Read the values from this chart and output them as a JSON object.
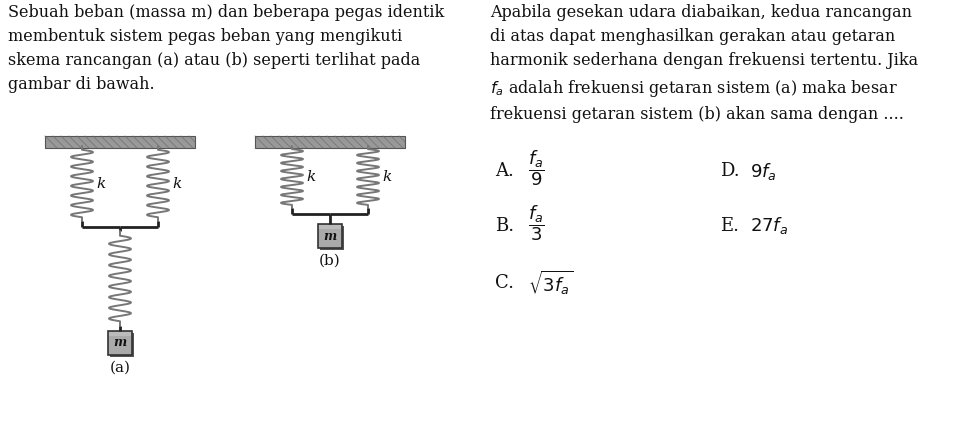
{
  "bg_color": "#ffffff",
  "left_text": "Sebuah beban (massa m) dan beberapa pegas identik\nmembentuk sistem pegas beban yang mengikuti\nskema rancangan (a) atau (b) seperti terlihat pada\ngambar di bawah.",
  "right_text_lines": [
    "Apabila gesekan udara diabaikan, kedua rancangan",
    "di atas dapat menghasilkan gerakan atau getaran",
    "harmonik sederhana dengan frekuensi tertentu. Jika",
    "$f_a$ adalah frekuensi getaran sistem (a) maka besar",
    "frekuensi getaran sistem (b) akan sama dengan ...."
  ],
  "spring_color": "#777777",
  "wall_fill": "#888888",
  "mass_fill": "#aaaaaa",
  "bar_color": "#222222",
  "text_fontsize": 11.5,
  "option_fontsize": 13
}
